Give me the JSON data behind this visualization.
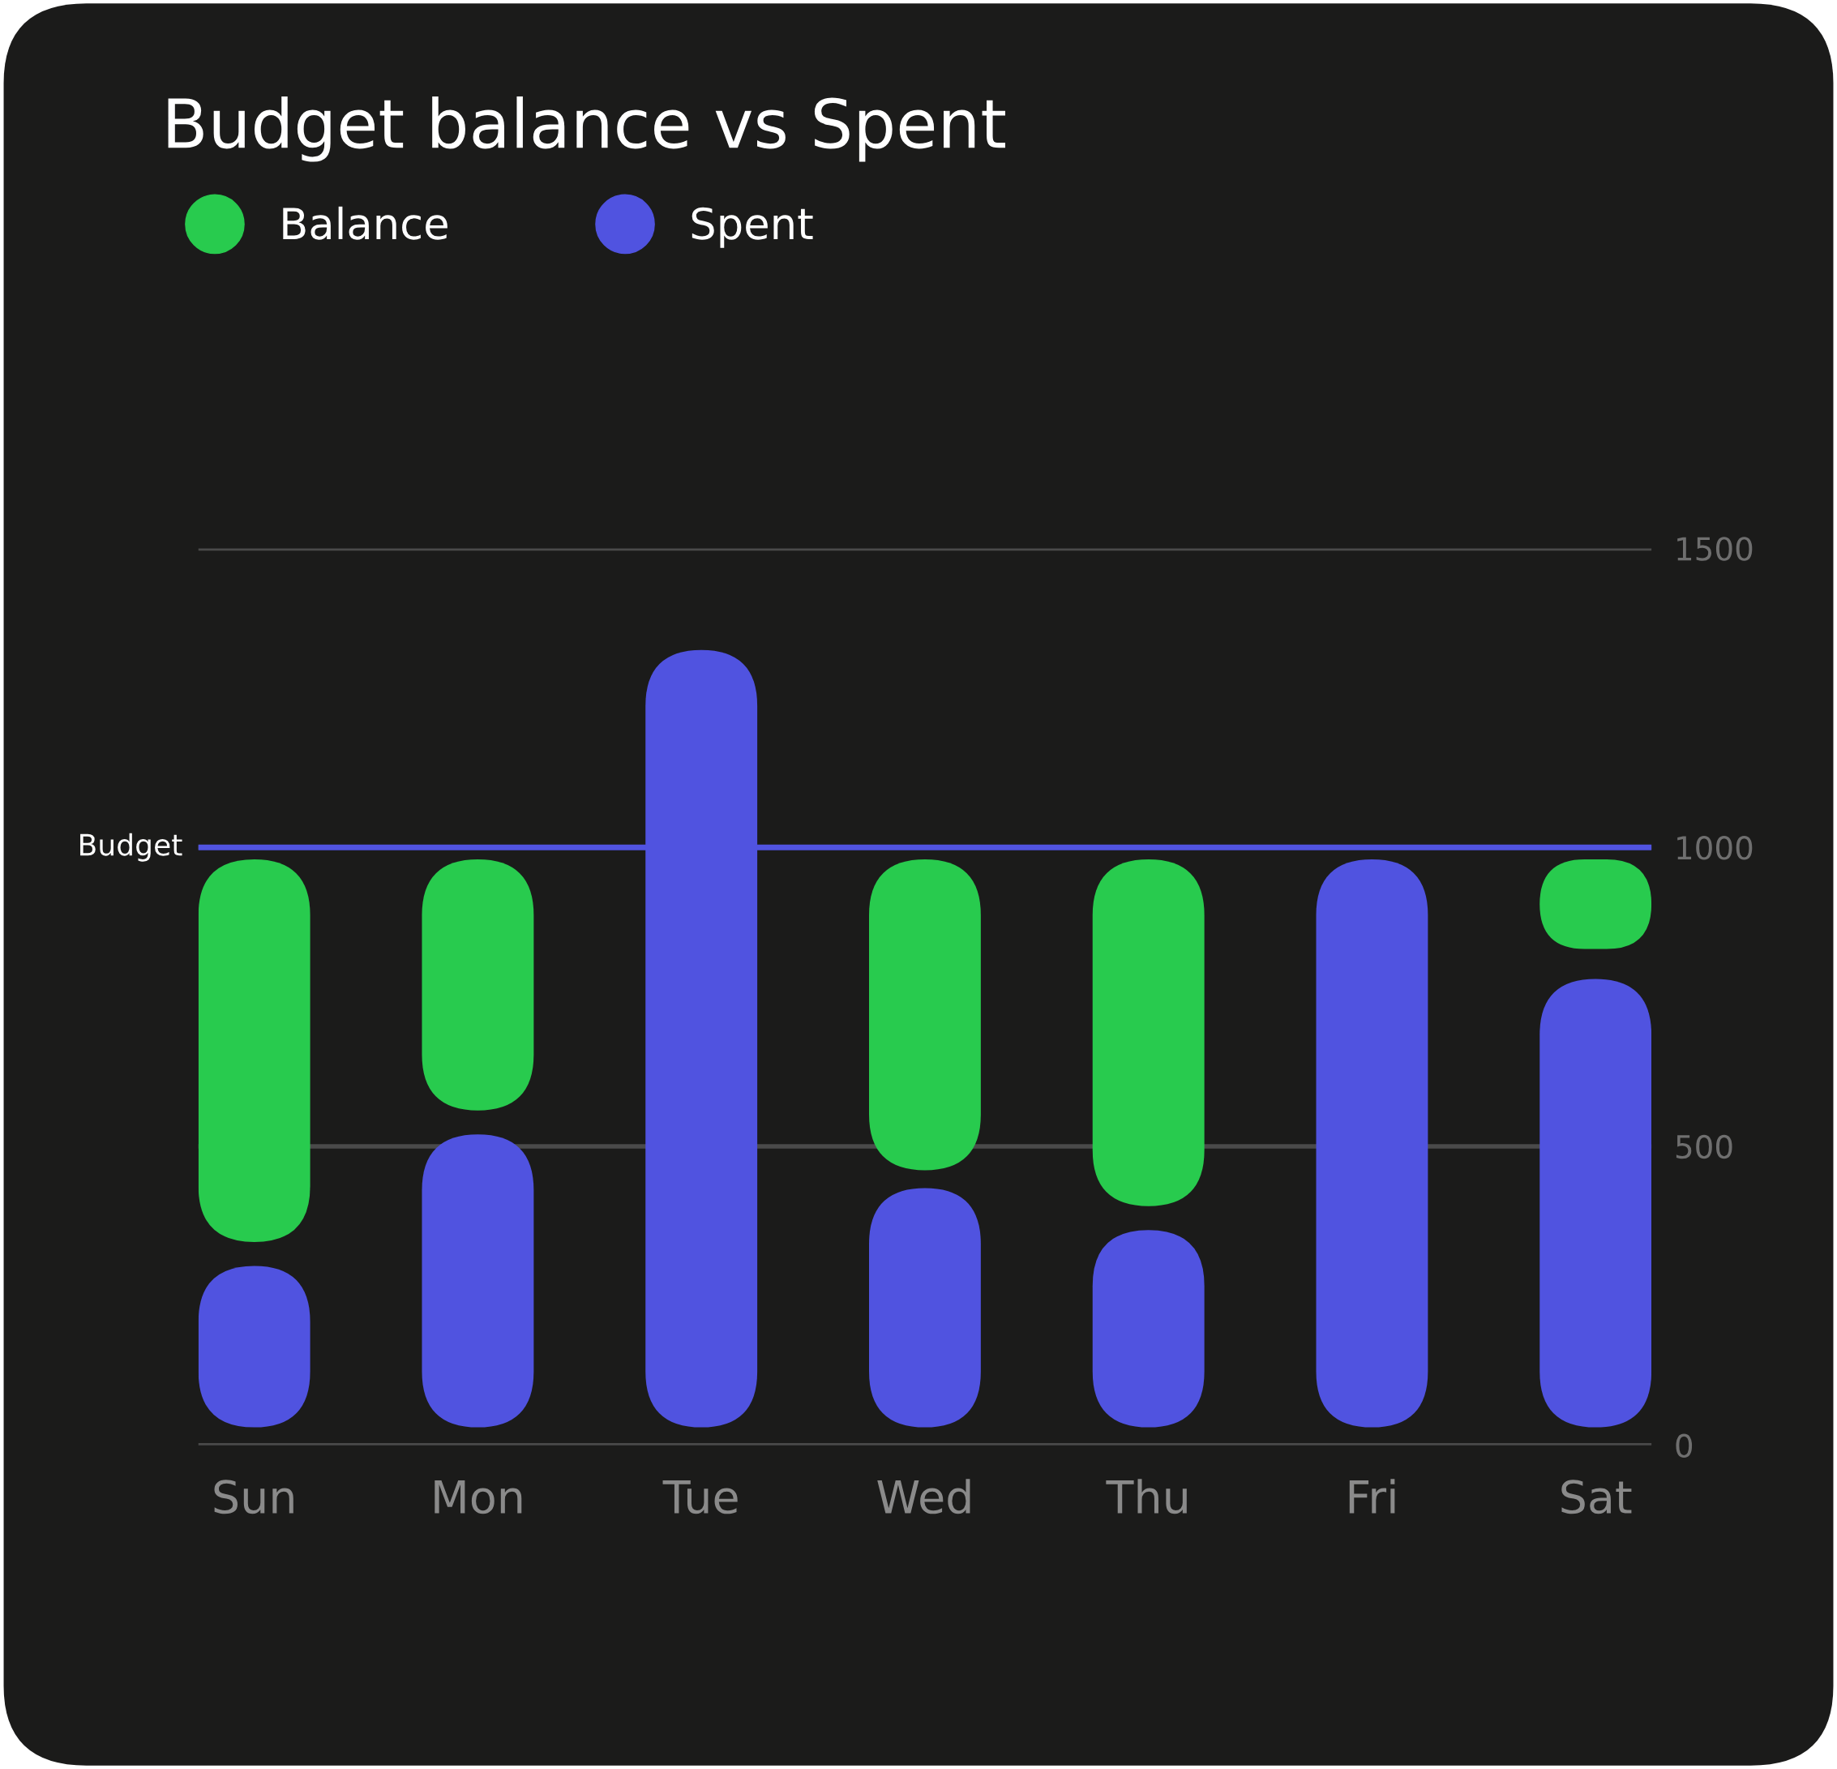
{
  "chart_data": {
    "type": "bar",
    "title": "Budget balance vs Spent",
    "categories": [
      "Sun",
      "Mon",
      "Tue",
      "Wed",
      "Thu",
      "Fri",
      "Sat"
    ],
    "series": [
      {
        "name": "Balance",
        "color": "#28cb4e",
        "base": [
          340,
          560,
          null,
          460,
          400,
          null,
          830
        ],
        "values": [
          640,
          420,
          null,
          520,
          580,
          null,
          150
        ]
      },
      {
        "name": "Spent",
        "color": "#5053e0",
        "base": [
          30,
          30,
          30,
          30,
          30,
          30,
          30
        ],
        "values": [
          270,
          490,
          1300,
          400,
          330,
          950,
          750
        ]
      }
    ],
    "ylim": [
      0,
      1500
    ],
    "yticks": [
      0,
      500,
      1000,
      1500
    ],
    "grid": "y",
    "legend": "top left",
    "ref_lines": [
      {
        "axis": "y",
        "value": 1000,
        "label": "Budget",
        "color": "#5053e0",
        "line_style": "solid"
      }
    ]
  }
}
